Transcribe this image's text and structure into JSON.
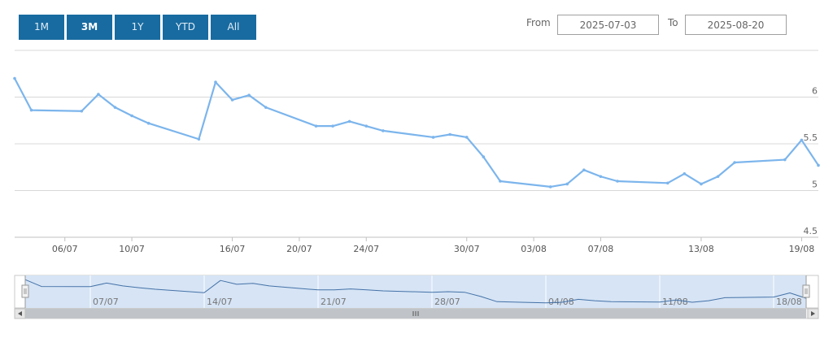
{
  "range_selector": {
    "buttons": [
      {
        "label": "1M",
        "selected": false
      },
      {
        "label": "3M",
        "selected": true
      },
      {
        "label": "1Y",
        "selected": false
      },
      {
        "label": "YTD",
        "selected": false
      },
      {
        "label": "All",
        "selected": false
      }
    ],
    "from_label": "From",
    "from_value": "2025-07-03",
    "to_label": "To",
    "to_value": "2025-08-20"
  },
  "colors": {
    "button_bg": "#186ba0",
    "series_line": "#7cb5ec",
    "grid": "#d8d8d8",
    "navigator_mask": "#d6e4f5",
    "scrollbar": "#cccccc"
  },
  "chart_data": {
    "type": "line",
    "x": [
      "2025-07-03",
      "2025-07-04",
      "2025-07-07",
      "2025-07-08",
      "2025-07-09",
      "2025-07-10",
      "2025-07-11",
      "2025-07-14",
      "2025-07-15",
      "2025-07-16",
      "2025-07-17",
      "2025-07-18",
      "2025-07-21",
      "2025-07-22",
      "2025-07-23",
      "2025-07-24",
      "2025-07-25",
      "2025-07-28",
      "2025-07-29",
      "2025-07-30",
      "2025-07-31",
      "2025-08-01",
      "2025-08-04",
      "2025-08-05",
      "2025-08-06",
      "2025-08-07",
      "2025-08-08",
      "2025-08-11",
      "2025-08-12",
      "2025-08-13",
      "2025-08-14",
      "2025-08-15",
      "2025-08-18",
      "2025-08-19",
      "2025-08-20"
    ],
    "series": [
      {
        "values": [
          6.2,
          5.86,
          5.85,
          6.03,
          5.89,
          5.8,
          5.72,
          5.55,
          6.16,
          5.97,
          6.02,
          5.89,
          5.69,
          5.69,
          5.74,
          5.69,
          5.64,
          5.57,
          5.6,
          5.57,
          5.36,
          5.1,
          5.04,
          5.07,
          5.22,
          5.15,
          5.1,
          5.08,
          5.18,
          5.07,
          5.15,
          5.3,
          5.33,
          5.54,
          5.27
        ]
      }
    ],
    "y_ticks": [
      "4.5",
      "5",
      "5.5",
      "6"
    ],
    "ylim": [
      4.5,
      6.5
    ],
    "x_ticks": [
      "06/07",
      "10/07",
      "16/07",
      "20/07",
      "24/07",
      "30/07",
      "03/08",
      "07/08",
      "13/08",
      "19/08"
    ],
    "x_tick_dates": [
      "2025-07-06",
      "2025-07-10",
      "2025-07-16",
      "2025-07-20",
      "2025-07-24",
      "2025-07-30",
      "2025-08-03",
      "2025-08-07",
      "2025-08-13",
      "2025-08-19"
    ],
    "navigator_ticks": [
      "07/07",
      "14/07",
      "21/07",
      "28/07",
      "04/08",
      "11/08",
      "18/08"
    ],
    "navigator_tick_dates": [
      "2025-07-07",
      "2025-07-14",
      "2025-07-21",
      "2025-07-28",
      "2025-08-04",
      "2025-08-11",
      "2025-08-18"
    ],
    "grid": true,
    "y_axis_side": "right"
  }
}
